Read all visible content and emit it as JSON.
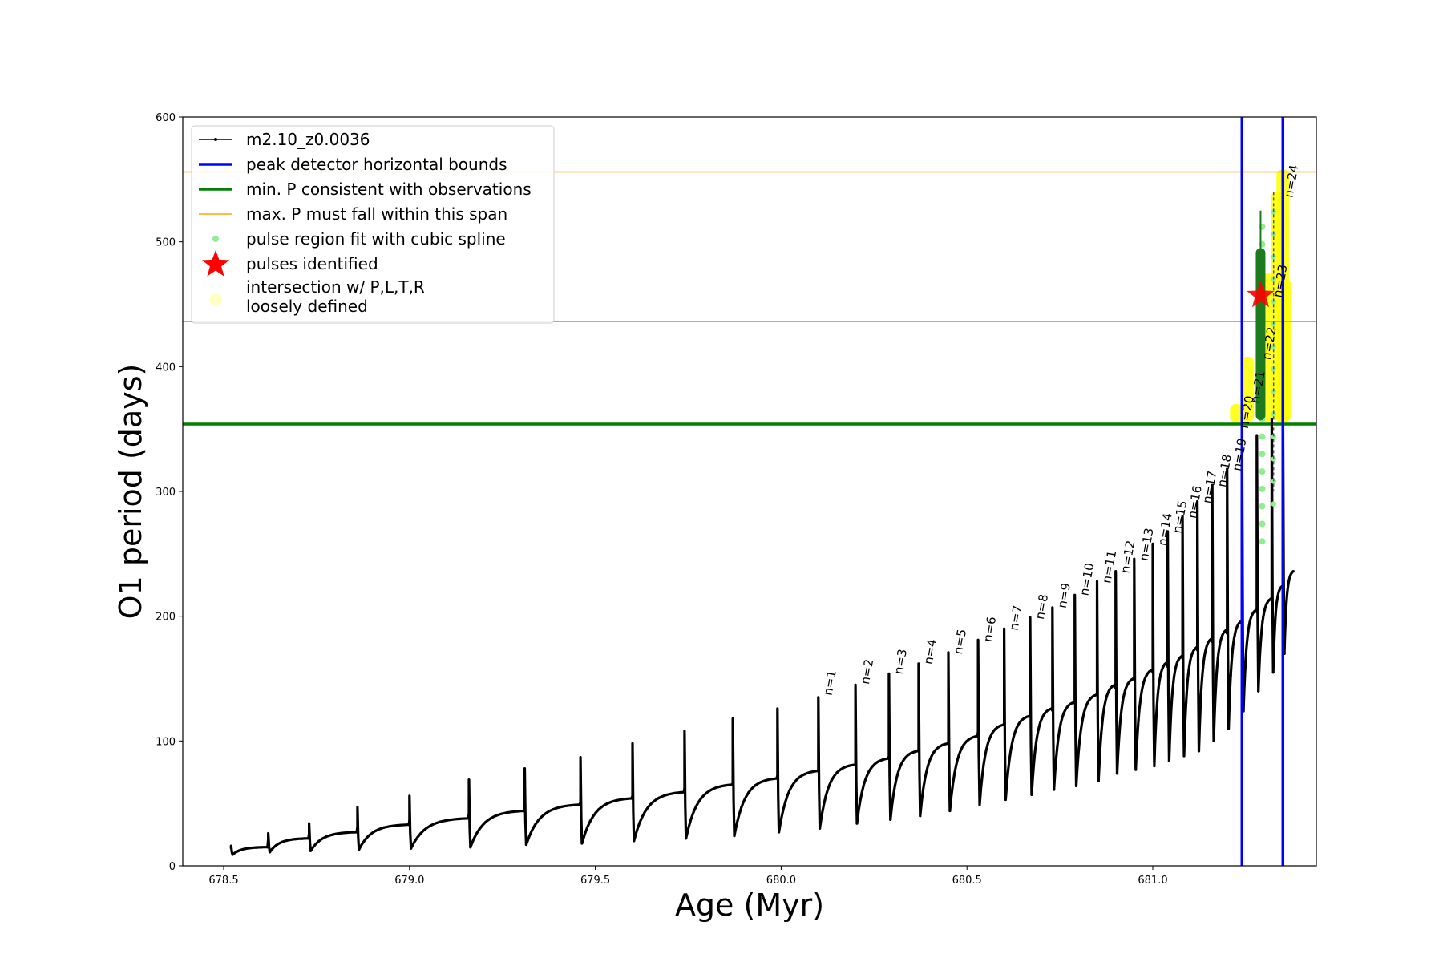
{
  "chart_data": {
    "type": "line",
    "title": "",
    "xlabel": "Age (Myr)",
    "ylabel": "O1 period (days)",
    "xlim": [
      678.39,
      681.44
    ],
    "ylim": [
      0,
      600
    ],
    "xticks": [
      678.5,
      679.0,
      679.5,
      680.0,
      680.5,
      681.0
    ],
    "xtick_labels": [
      "678.5",
      "679.0",
      "679.5",
      "680.0",
      "680.5",
      "681.0"
    ],
    "yticks": [
      0,
      100,
      200,
      300,
      400,
      500,
      600
    ],
    "ytick_labels": [
      "0",
      "100",
      "200",
      "300",
      "400",
      "500",
      "600"
    ],
    "grid": false,
    "legend_position": "top-left",
    "series": [
      {
        "name": "m2.10_z0.0036",
        "kind": "line-with-dots",
        "color": "#000000",
        "cycle_starts": [
          678.52,
          678.62,
          678.73,
          678.86,
          679.0,
          679.16,
          679.31,
          679.46,
          679.6,
          679.74,
          679.87,
          679.99,
          680.1,
          680.2,
          680.29,
          680.37,
          680.45,
          680.53,
          680.6,
          680.67,
          680.73,
          680.79,
          680.85,
          680.9,
          680.95,
          681.0,
          681.04,
          681.08,
          681.12,
          681.16,
          681.2,
          681.24,
          681.28,
          681.32,
          681.35
        ],
        "cycle_peaks": [
          16,
          26,
          34,
          47,
          56,
          69,
          78,
          87,
          98,
          108,
          118,
          126,
          135,
          145,
          154,
          162,
          171,
          181,
          190,
          199,
          207,
          217,
          228,
          236,
          246,
          258,
          268,
          280,
          292,
          305,
          318,
          332,
          345,
          358,
          372
        ],
        "cycle_plateaus": [
          15,
          22,
          27,
          33,
          38,
          44,
          49,
          54,
          59,
          65,
          70,
          76,
          81,
          86,
          92,
          98,
          104,
          113,
          120,
          126,
          131,
          137,
          145,
          150,
          157,
          163,
          168,
          175,
          182,
          189,
          196,
          205,
          214,
          224,
          236
        ],
        "cycle_minima": [
          9,
          11,
          12,
          13,
          14,
          15,
          17,
          18,
          20,
          22,
          24,
          27,
          30,
          34,
          37,
          40,
          44,
          49,
          53,
          57,
          61,
          64,
          68,
          74,
          77,
          80,
          84,
          88,
          92,
          100,
          110,
          124,
          140,
          155,
          170
        ]
      },
      {
        "name": "peak detector horizontal bounds",
        "kind": "vline",
        "color": "#0000ff",
        "x": [
          681.24,
          681.35
        ]
      },
      {
        "name": "min. P consistent with observations",
        "kind": "hline",
        "color": "#008000",
        "y": [
          354
        ]
      },
      {
        "name": "max. P must fall within this span",
        "kind": "hline",
        "color": "#ffa500",
        "y": [
          436,
          556
        ]
      },
      {
        "name": "pulse region fit with cubic spline",
        "kind": "scatter",
        "color": "#90ee90"
      },
      {
        "name": "pulses identified",
        "kind": "star",
        "color": "#ff0000",
        "points": [
          {
            "x": 681.29,
            "y": 457
          }
        ]
      },
      {
        "name": "intersection w/ P,L,T,R\nloosely defined",
        "kind": "highlight",
        "color": "#ffff00"
      }
    ],
    "pulse_labels": [
      {
        "text": "n=1",
        "x": 680.11,
        "y": 136
      },
      {
        "text": "n=2",
        "x": 680.21,
        "y": 145
      },
      {
        "text": "n=3",
        "x": 680.3,
        "y": 153
      },
      {
        "text": "n=4",
        "x": 680.38,
        "y": 161
      },
      {
        "text": "n=5",
        "x": 680.46,
        "y": 169
      },
      {
        "text": "n=6",
        "x": 680.54,
        "y": 179
      },
      {
        "text": "n=7",
        "x": 680.61,
        "y": 188
      },
      {
        "text": "n=8",
        "x": 680.68,
        "y": 197
      },
      {
        "text": "n=9",
        "x": 680.74,
        "y": 206
      },
      {
        "text": "n=10",
        "x": 680.8,
        "y": 216
      },
      {
        "text": "n=11",
        "x": 680.86,
        "y": 226
      },
      {
        "text": "n=12",
        "x": 680.91,
        "y": 234
      },
      {
        "text": "n=13",
        "x": 680.96,
        "y": 244
      },
      {
        "text": "n=14",
        "x": 681.01,
        "y": 256
      },
      {
        "text": "n=15",
        "x": 681.05,
        "y": 266
      },
      {
        "text": "n=16",
        "x": 681.09,
        "y": 278
      },
      {
        "text": "n=17",
        "x": 681.13,
        "y": 290
      },
      {
        "text": "n=18",
        "x": 681.17,
        "y": 303
      },
      {
        "text": "n=19",
        "x": 681.21,
        "y": 316
      },
      {
        "text": "n=20",
        "x": 681.23,
        "y": 350
      },
      {
        "text": "n=21",
        "x": 681.26,
        "y": 370
      },
      {
        "text": "n=22",
        "x": 681.29,
        "y": 405
      },
      {
        "text": "n=23",
        "x": 681.32,
        "y": 455
      },
      {
        "text": "n=24",
        "x": 681.35,
        "y": 535
      }
    ]
  }
}
